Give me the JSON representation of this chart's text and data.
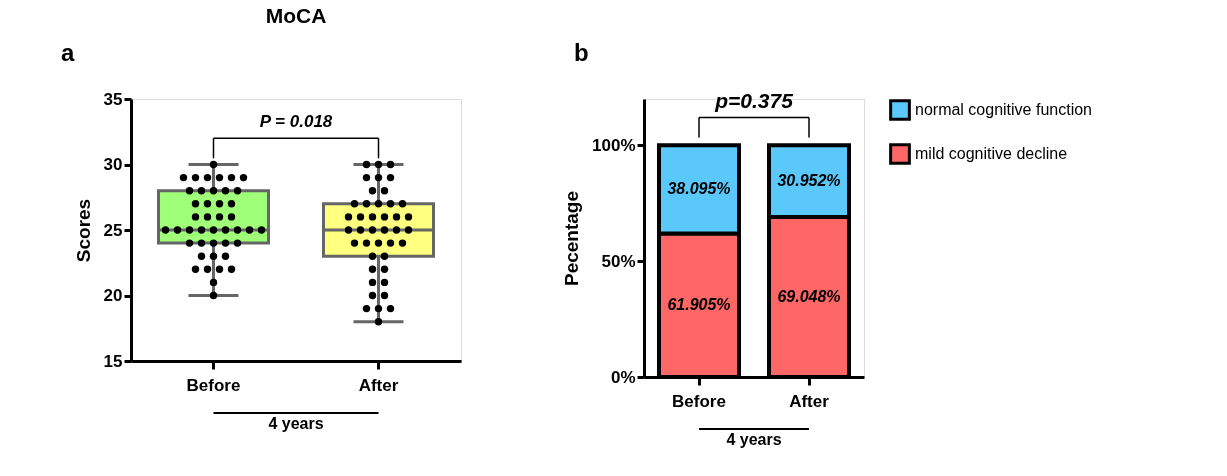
{
  "chart_data": [
    {
      "type": "box",
      "title": "MoCA",
      "ylabel": "Scores",
      "categories": [
        "Before",
        "After"
      ],
      "boxes": [
        {
          "low": 20,
          "q1": 24,
          "median": 25,
          "q3": 28,
          "high": 30
        },
        {
          "low": 18,
          "q1": 23,
          "median": 25,
          "q3": 27,
          "high": 30
        }
      ],
      "colors": [
        "#a0ff78",
        "#ffff80"
      ],
      "series": [
        {
          "type": "scatter",
          "color": "#000000",
          "x": [
            "Before",
            "Before",
            "Before",
            "Before",
            "Before",
            "Before",
            "Before",
            "Before",
            "Before",
            "Before",
            "Before",
            "Before",
            "Before",
            "Before",
            "Before",
            "Before",
            "Before",
            "Before",
            "Before",
            "Before",
            "Before",
            "Before",
            "Before",
            "Before",
            "Before",
            "Before",
            "Before",
            "Before",
            "Before",
            "Before",
            "Before",
            "Before",
            "Before",
            "Before",
            "Before",
            "Before",
            "Before",
            "Before",
            "Before",
            "Before",
            "Before",
            "Before",
            "Before",
            "After",
            "After",
            "After",
            "After",
            "After",
            "After",
            "After",
            "After",
            "After",
            "After",
            "After",
            "After",
            "After",
            "After",
            "After",
            "After",
            "After",
            "After",
            "After",
            "After",
            "After",
            "After",
            "After",
            "After",
            "After",
            "After",
            "After",
            "After",
            "After",
            "After",
            "After",
            "After",
            "After",
            "After",
            "After",
            "After",
            "After",
            "After",
            "After",
            "After",
            "After",
            "After"
          ],
          "values": [
            30,
            29,
            29,
            29,
            29,
            29,
            29,
            28,
            28,
            28,
            28,
            28,
            27,
            27,
            27,
            27,
            26,
            26,
            26,
            26,
            25,
            25,
            25,
            25,
            25,
            25,
            25,
            25,
            25,
            24,
            24,
            24,
            24,
            24,
            23,
            23,
            23,
            22,
            22,
            22,
            22,
            21,
            20,
            30,
            30,
            30,
            29,
            29,
            29,
            28,
            28,
            27,
            27,
            27,
            27,
            27,
            26,
            26,
            26,
            26,
            26,
            26,
            25,
            25,
            25,
            25,
            25,
            25,
            24,
            24,
            24,
            24,
            24,
            23,
            23,
            22,
            22,
            21,
            21,
            20,
            20,
            19,
            19,
            19,
            18
          ]
        }
      ],
      "ylim": [
        15,
        35
      ],
      "yticks": [
        15,
        20,
        25,
        30,
        35
      ],
      "grid": false,
      "marker": "circle",
      "annotations": [
        "a",
        "P = 0.018",
        "4 years"
      ]
    },
    {
      "type": "bar",
      "stacked": true,
      "ylabel": "Pecentage",
      "categories": [
        "Before",
        "After"
      ],
      "series": [
        {
          "name": "mild cognitive decline",
          "color": "#ff6666",
          "values": [
            61.905,
            69.048
          ],
          "value_labels": [
            "61.905%",
            "69.048%"
          ]
        },
        {
          "name": "normal cognitive function",
          "color": "#5ac8fa",
          "values": [
            38.095,
            30.952
          ],
          "value_labels": [
            "38.095%",
            "30.952%"
          ]
        }
      ],
      "ylim": [
        0,
        120
      ],
      "yticks": [
        {
          "value": 0,
          "label": "0%"
        },
        {
          "value": 50,
          "label": "50%"
        },
        {
          "value": 100,
          "label": "100%"
        }
      ],
      "grid": false,
      "legend": "top right",
      "annotations": [
        "b",
        "p=0.375",
        "4 years"
      ]
    }
  ]
}
